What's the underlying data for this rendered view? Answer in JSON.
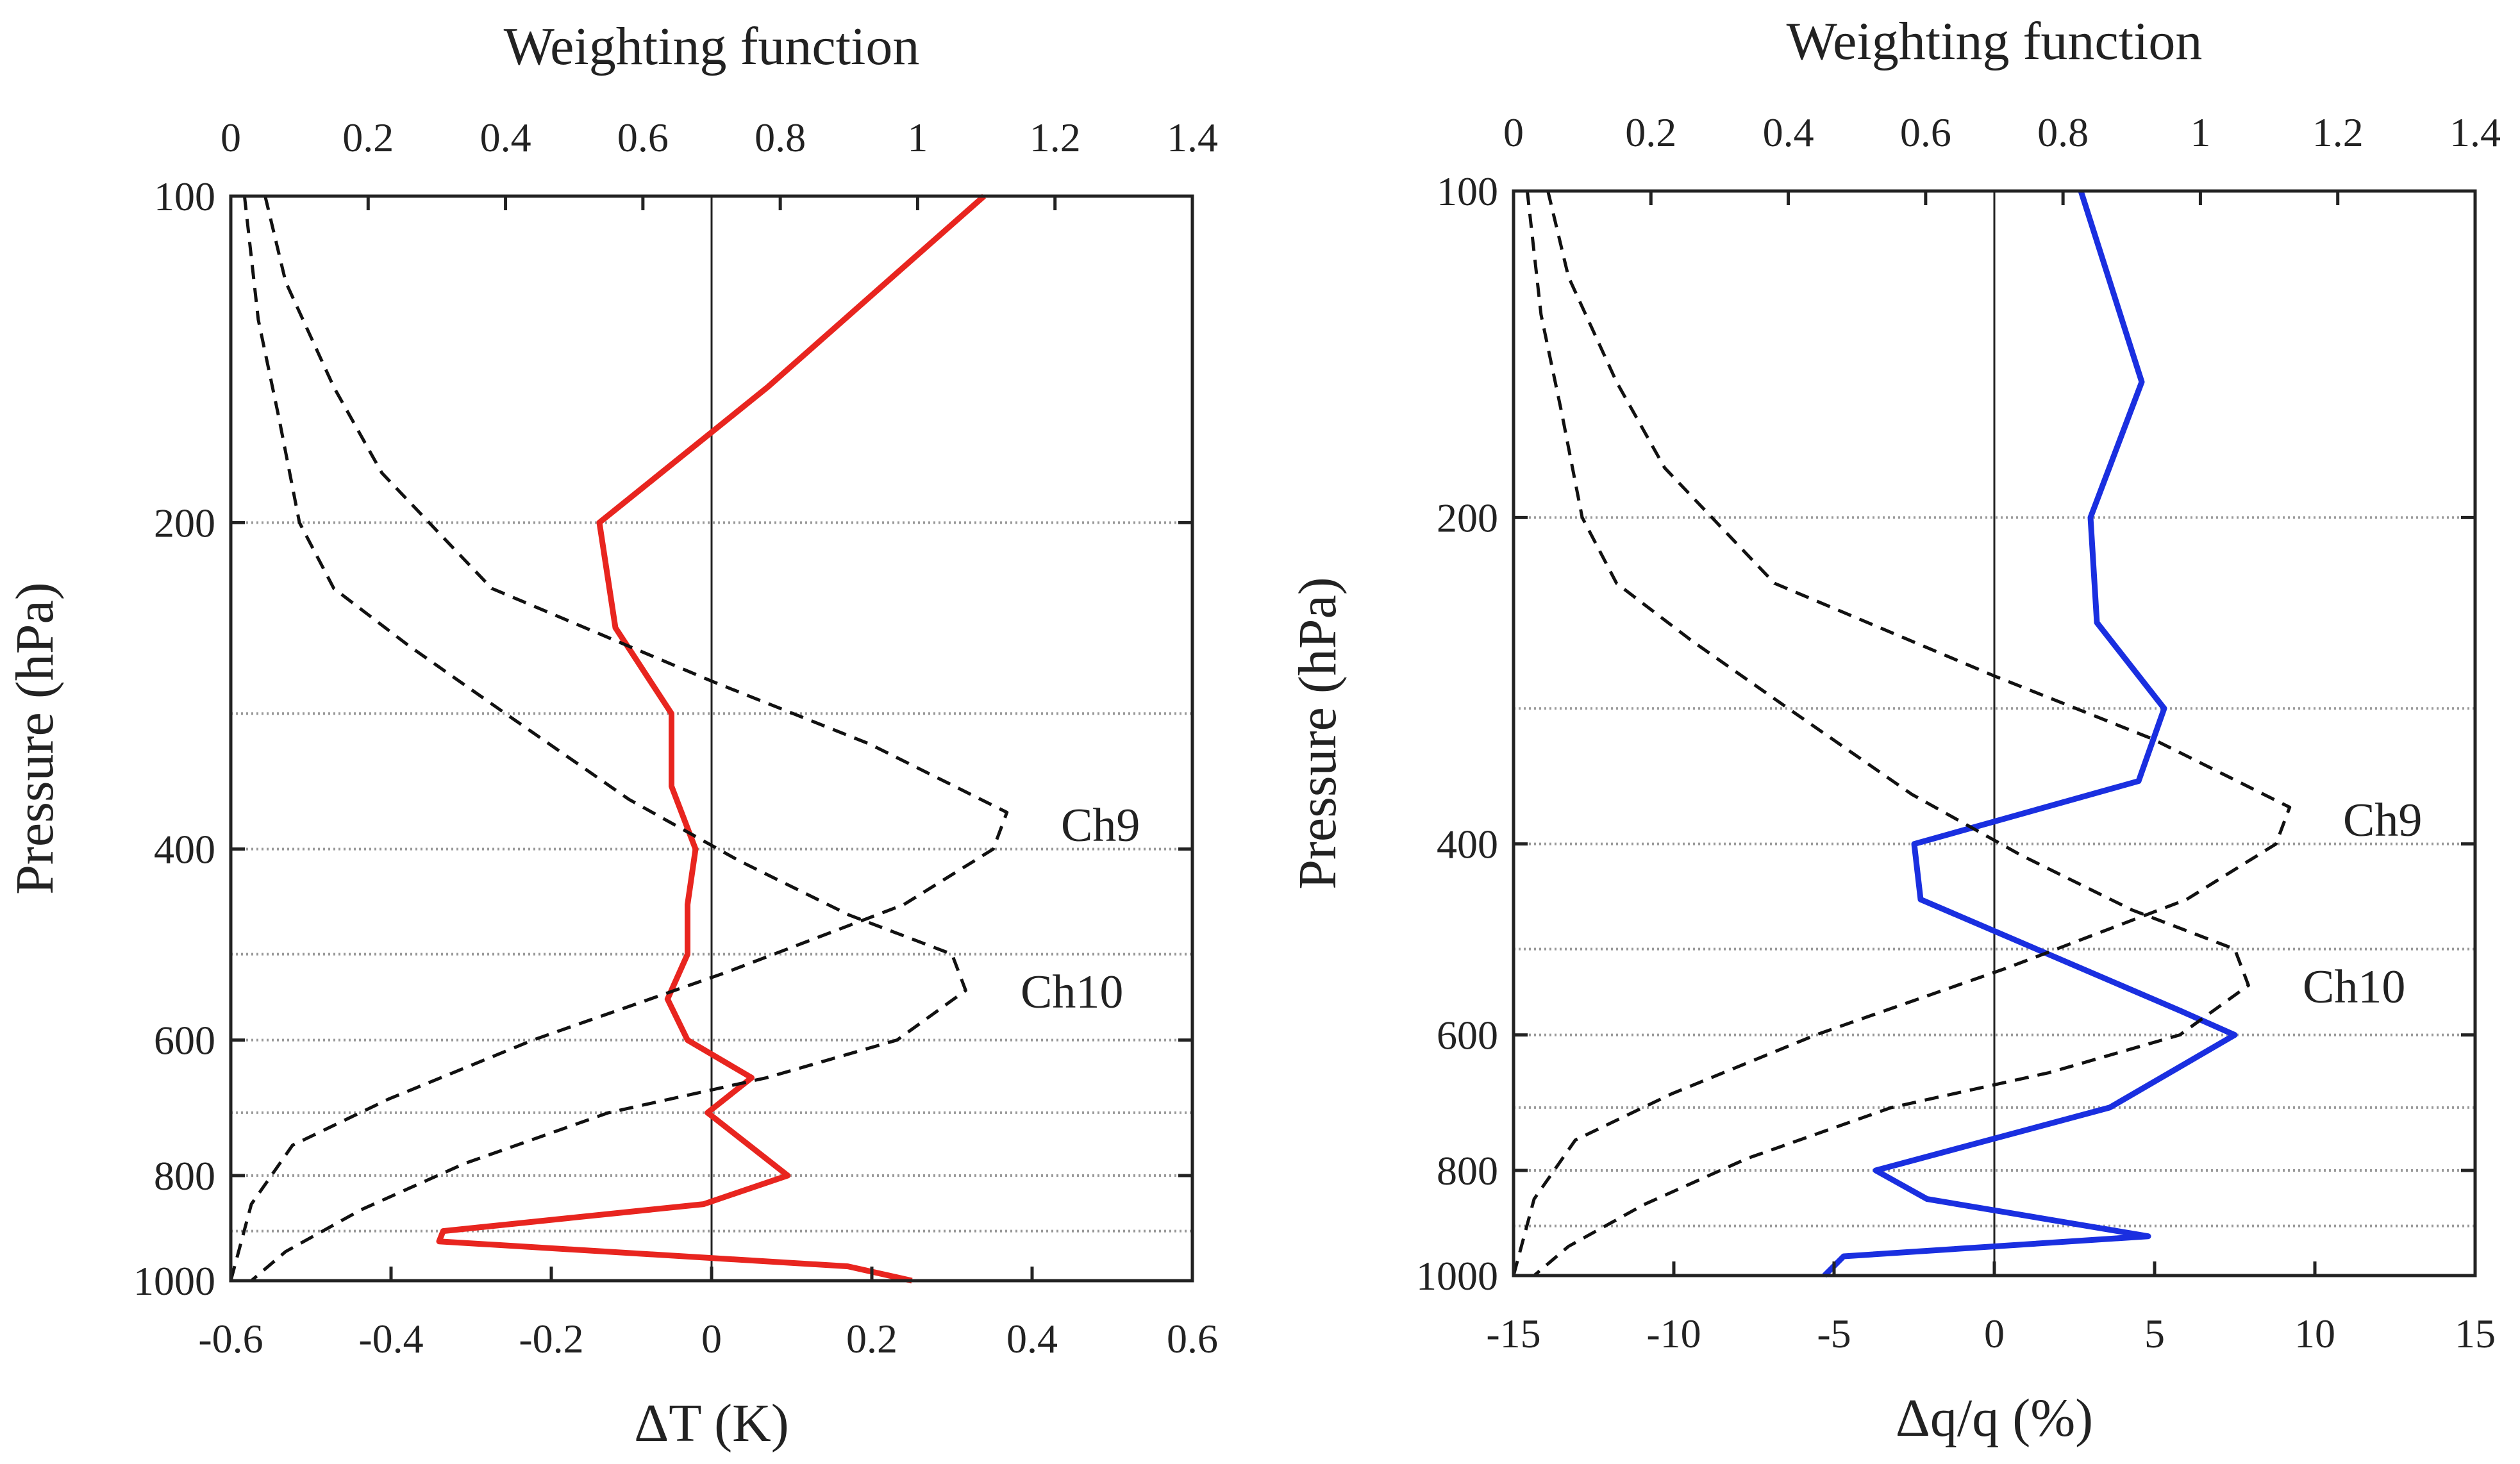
{
  "chart_data": [
    {
      "type": "line",
      "top_axis": {
        "label": "Weighting function",
        "ticks": [
          0,
          0.2,
          0.4,
          0.6,
          0.8,
          1,
          1.2,
          1.4
        ],
        "tick_labels": [
          "0",
          "0.2",
          "0.4",
          "0.6",
          "0.8",
          "1",
          "1.2",
          "1.4"
        ],
        "lim": [
          0,
          1.4
        ]
      },
      "bottom_axis": {
        "label": "ΔT (K)",
        "ticks": [
          -0.6,
          -0.4,
          -0.2,
          0,
          0.2,
          0.4,
          0.6
        ],
        "tick_labels": [
          "-0.6",
          "-0.4",
          "-0.2",
          "0",
          "0.2",
          "0.4",
          "0.6"
        ],
        "lim": [
          -0.6,
          0.6
        ]
      },
      "y_axis": {
        "label": "Pressure (hPa)",
        "scale": "log",
        "inverted": true,
        "lim": [
          100,
          1000
        ],
        "ticks": [
          100,
          200,
          400,
          600,
          800,
          1000
        ],
        "tick_labels": [
          "100",
          "200",
          "400",
          "600",
          "800",
          "1000"
        ],
        "gridlines": [
          200,
          300,
          400,
          500,
          600,
          700,
          800,
          900
        ]
      },
      "series": [
        {
          "name": "ΔT",
          "axis": "bottom",
          "color": "#e8251f",
          "style": "solid",
          "points": [
            [
              0.34,
              100
            ],
            [
              0.07,
              150
            ],
            [
              -0.14,
              200
            ],
            [
              -0.12,
              250
            ],
            [
              -0.05,
              300
            ],
            [
              -0.05,
              350
            ],
            [
              -0.02,
              400
            ],
            [
              -0.03,
              450
            ],
            [
              -0.03,
              500
            ],
            [
              -0.055,
              550
            ],
            [
              -0.03,
              600
            ],
            [
              0.05,
              650
            ],
            [
              -0.005,
              700
            ],
            [
              0.095,
              800
            ],
            [
              -0.01,
              850
            ],
            [
              -0.335,
              900
            ],
            [
              -0.34,
              920
            ],
            [
              0.17,
              970
            ],
            [
              0.25,
              1000
            ]
          ]
        },
        {
          "name": "Ch9",
          "axis": "top",
          "color": "#111111",
          "style": "dashed",
          "points": [
            [
              0.05,
              100
            ],
            [
              0.08,
              120
            ],
            [
              0.15,
              150
            ],
            [
              0.22,
              180
            ],
            [
              0.38,
              230
            ],
            [
              0.7,
              280
            ],
            [
              0.93,
              320
            ],
            [
              1.13,
              370
            ],
            [
              1.11,
              400
            ],
            [
              0.98,
              450
            ],
            [
              0.72,
              520
            ],
            [
              0.44,
              600
            ],
            [
              0.23,
              680
            ],
            [
              0.09,
              750
            ],
            [
              0.03,
              850
            ],
            [
              0.0,
              1000
            ]
          ]
        },
        {
          "name": "Ch10",
          "axis": "top",
          "color": "#111111",
          "style": "dashed",
          "points": [
            [
              0.02,
              100
            ],
            [
              0.04,
              130
            ],
            [
              0.07,
              160
            ],
            [
              0.1,
              200
            ],
            [
              0.15,
              230
            ],
            [
              0.26,
              260
            ],
            [
              0.4,
              300
            ],
            [
              0.58,
              360
            ],
            [
              0.74,
              410
            ],
            [
              0.9,
              460
            ],
            [
              1.05,
              500
            ],
            [
              1.07,
              540
            ],
            [
              0.97,
              600
            ],
            [
              0.78,
              650
            ],
            [
              0.55,
              700
            ],
            [
              0.34,
              780
            ],
            [
              0.19,
              860
            ],
            [
              0.08,
              940
            ],
            [
              0.03,
              1000
            ]
          ]
        }
      ],
      "annotations": [
        {
          "text": "Ch9"
        },
        {
          "text": "Ch10"
        }
      ]
    },
    {
      "type": "line",
      "top_axis": {
        "label": "Weighting function",
        "ticks": [
          0,
          0.2,
          0.4,
          0.6,
          0.8,
          1,
          1.2,
          1.4
        ],
        "tick_labels": [
          "0",
          "0.2",
          "0.4",
          "0.6",
          "0.8",
          "1",
          "1.2",
          "1.4"
        ],
        "lim": [
          0,
          1.4
        ]
      },
      "bottom_axis": {
        "label": "Δq/q (%)",
        "ticks": [
          -15,
          -10,
          -5,
          0,
          5,
          10,
          15
        ],
        "tick_labels": [
          "-15",
          "-10",
          "-5",
          "0",
          "5",
          "10",
          "15"
        ],
        "lim": [
          -15,
          15
        ]
      },
      "y_axis": {
        "label": "Pressure (hPa)",
        "scale": "log",
        "inverted": true,
        "lim": [
          100,
          1000
        ],
        "ticks": [
          100,
          200,
          400,
          600,
          800,
          1000
        ],
        "tick_labels": [
          "100",
          "200",
          "400",
          "600",
          "800",
          "1000"
        ],
        "gridlines": [
          200,
          300,
          400,
          500,
          600,
          700,
          800,
          900
        ]
      },
      "series": [
        {
          "name": "Δq/q",
          "axis": "bottom",
          "color": "#1a2fe0",
          "style": "solid",
          "points": [
            [
              2.7,
              100
            ],
            [
              4.6,
              150
            ],
            [
              3.0,
              200
            ],
            [
              3.2,
              250
            ],
            [
              5.3,
              300
            ],
            [
              4.5,
              350
            ],
            [
              -2.5,
              400
            ],
            [
              -2.3,
              450
            ],
            [
              5.8,
              570
            ],
            [
              7.5,
              600
            ],
            [
              3.6,
              700
            ],
            [
              -3.7,
              800
            ],
            [
              -2.1,
              850
            ],
            [
              4.8,
              920
            ],
            [
              -4.7,
              960
            ],
            [
              -5.3,
              1000
            ]
          ]
        },
        {
          "name": "Ch9",
          "axis": "top",
          "color": "#111111",
          "style": "dashed",
          "points": [
            [
              0.05,
              100
            ],
            [
              0.08,
              120
            ],
            [
              0.15,
              150
            ],
            [
              0.22,
              180
            ],
            [
              0.38,
              230
            ],
            [
              0.7,
              280
            ],
            [
              0.93,
              320
            ],
            [
              1.13,
              370
            ],
            [
              1.11,
              400
            ],
            [
              0.98,
              450
            ],
            [
              0.72,
              520
            ],
            [
              0.44,
              600
            ],
            [
              0.23,
              680
            ],
            [
              0.09,
              750
            ],
            [
              0.03,
              850
            ],
            [
              0.0,
              1000
            ]
          ]
        },
        {
          "name": "Ch10",
          "axis": "top",
          "color": "#111111",
          "style": "dashed",
          "points": [
            [
              0.02,
              100
            ],
            [
              0.04,
              130
            ],
            [
              0.07,
              160
            ],
            [
              0.1,
              200
            ],
            [
              0.15,
              230
            ],
            [
              0.26,
              260
            ],
            [
              0.4,
              300
            ],
            [
              0.58,
              360
            ],
            [
              0.74,
              410
            ],
            [
              0.9,
              460
            ],
            [
              1.05,
              500
            ],
            [
              1.07,
              540
            ],
            [
              0.97,
              600
            ],
            [
              0.78,
              650
            ],
            [
              0.55,
              700
            ],
            [
              0.34,
              780
            ],
            [
              0.19,
              860
            ],
            [
              0.08,
              940
            ],
            [
              0.03,
              1000
            ]
          ]
        }
      ],
      "annotations": [
        {
          "text": "Ch9"
        },
        {
          "text": "Ch10"
        }
      ]
    }
  ]
}
